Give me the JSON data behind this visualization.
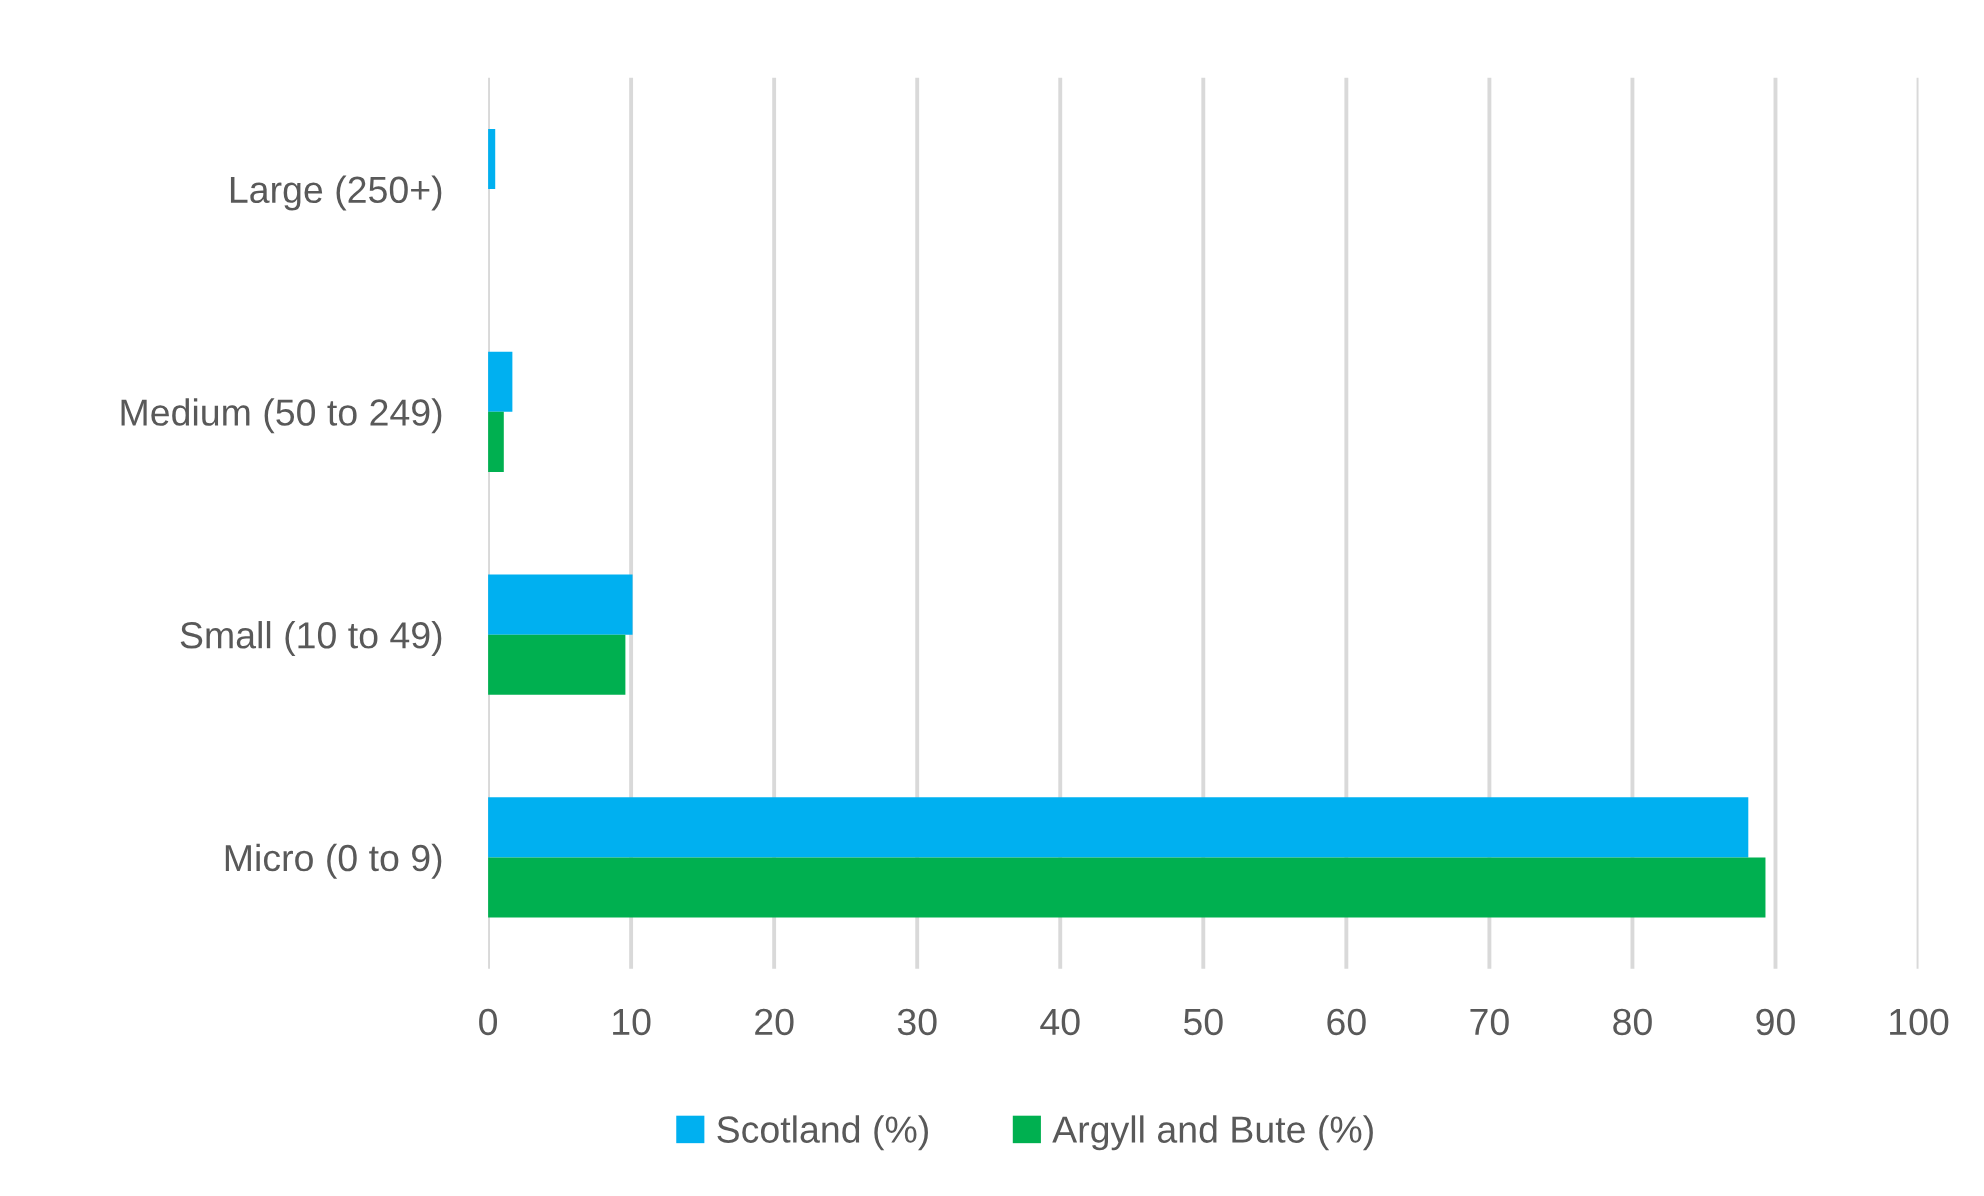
{
  "chart_data": {
    "type": "bar",
    "orientation": "horizontal",
    "categories": [
      "Large (250+)",
      "Medium (50 to 249)",
      "Small (10 to 49)",
      "Micro (0 to 9)"
    ],
    "series": [
      {
        "name": "Scotland (%)",
        "color": "#00b0f0",
        "values": [
          0.5,
          1.7,
          10.1,
          88.1
        ]
      },
      {
        "name": "Argyll and Bute (%)",
        "color": "#00b050",
        "values": [
          null,
          1.1,
          9.6,
          89.3
        ]
      }
    ],
    "xlim": [
      0,
      100
    ],
    "xticks": [
      0,
      10,
      20,
      30,
      40,
      50,
      60,
      70,
      80,
      90,
      100
    ],
    "grid": "x",
    "legend": "bottom"
  }
}
